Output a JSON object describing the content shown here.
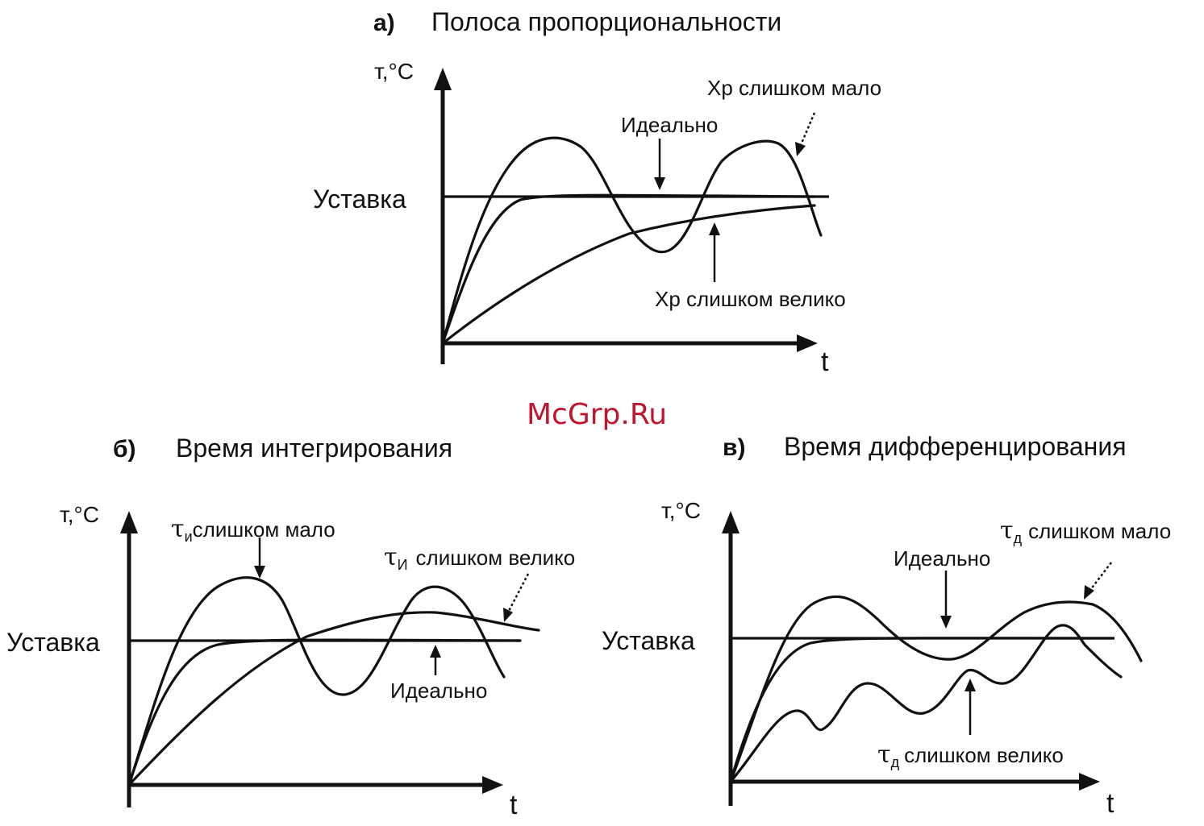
{
  "watermark": "McGrp.Ru",
  "panels": {
    "a": {
      "letter": "а)",
      "title": "Полоса пропорциональности",
      "ylabel": "т,°С",
      "xlabel": "t",
      "setpoint": "Уставка",
      "labels": {
        "ideal": "Идеально",
        "too_small": "Хр слишком мало",
        "too_large": "Хр слишком велико"
      }
    },
    "b": {
      "letter": "б)",
      "title": "Время интегрирования",
      "ylabel": "т,°С",
      "xlabel": "t",
      "setpoint": "Уставка",
      "labels": {
        "ideal": "Идеально",
        "too_small_symbol": "τ",
        "too_small_sub": "и",
        "too_small_text": "слишком мало",
        "too_large_symbol": "τ",
        "too_large_sub": "И",
        "too_large_text": "слишком велико"
      }
    },
    "c": {
      "letter": "в)",
      "title": "Время дифференцирования",
      "ylabel": "т,°С",
      "xlabel": "t",
      "setpoint": "Уставка",
      "labels": {
        "ideal": "Идеально",
        "too_small_symbol": "τ",
        "too_small_sub": "д",
        "too_small_text": "слишком мало",
        "too_large_symbol": "τ",
        "too_large_sub": "д",
        "too_large_text": "слишком велико"
      }
    }
  }
}
